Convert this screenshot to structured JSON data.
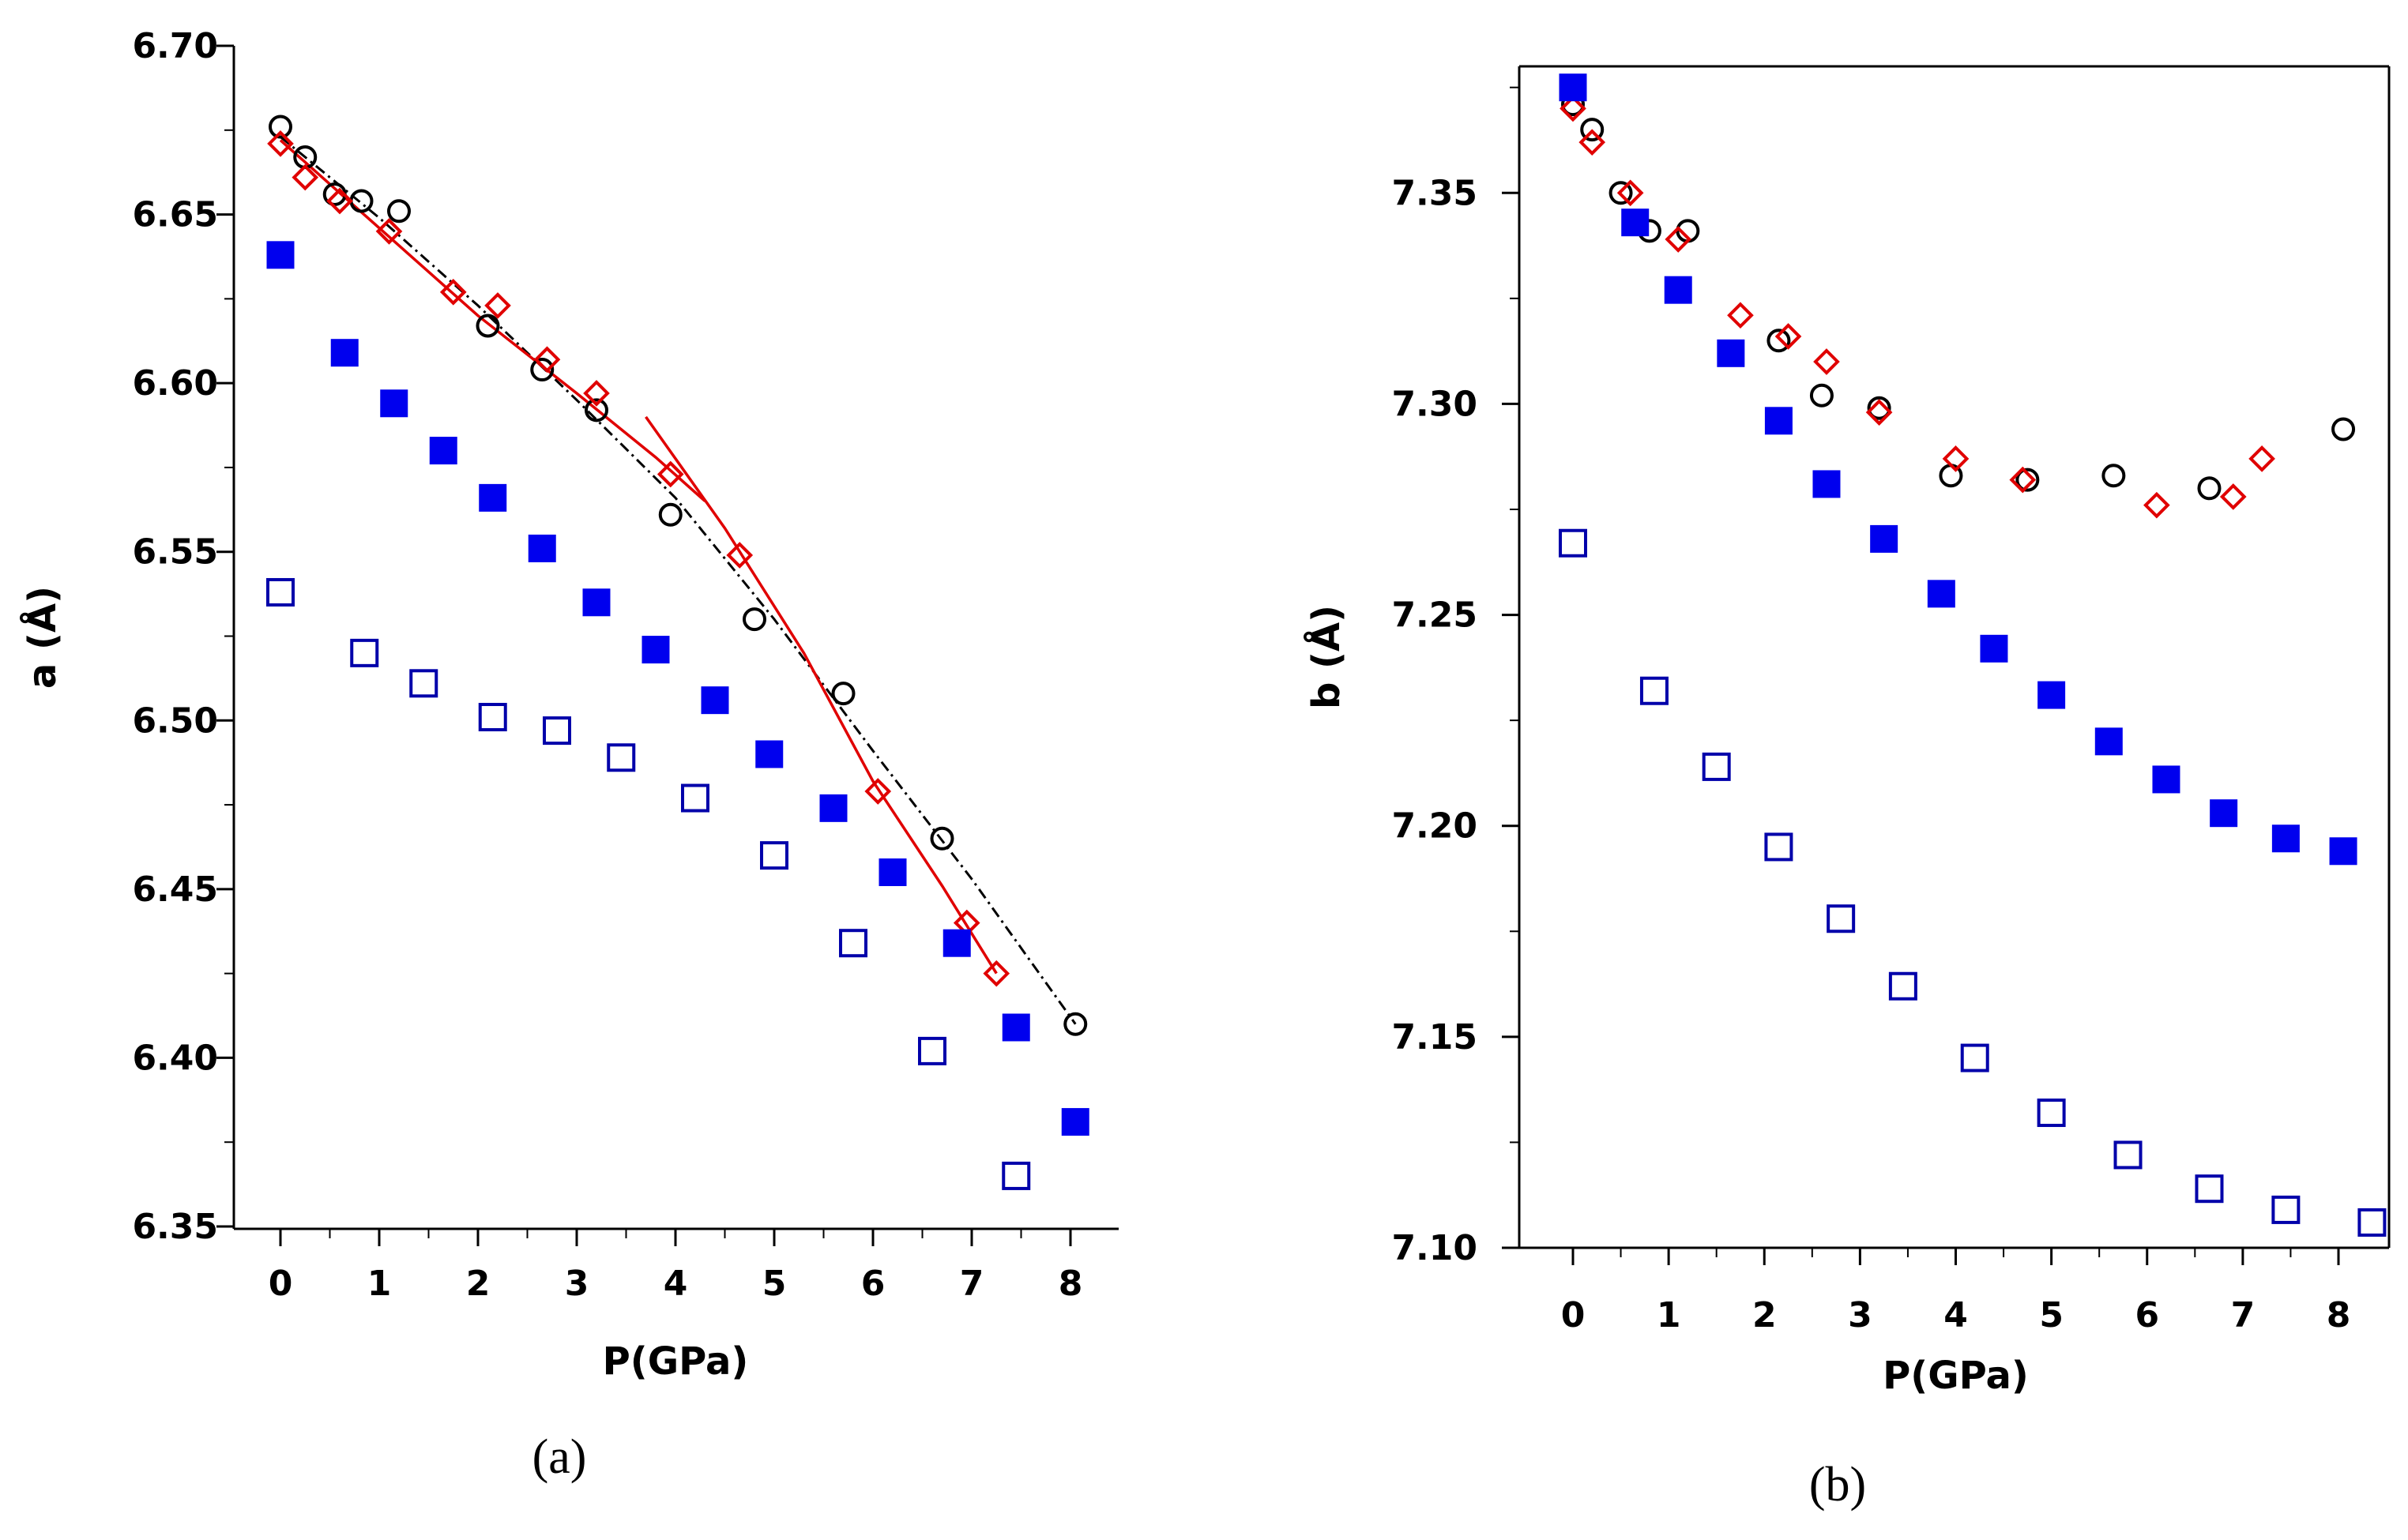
{
  "chart_data": [
    {
      "id": "a",
      "type": "scatter",
      "caption": "(a)",
      "xlabel": "P(GPa)",
      "ylabel": "a (Å)",
      "xlim": [
        -0.5,
        8.5
      ],
      "ylim": [
        6.35,
        6.7
      ],
      "xticks": [
        "0",
        "1",
        "2",
        "3",
        "4",
        "5",
        "6",
        "7",
        "8"
      ],
      "yticks": [
        "6.35",
        "6.40",
        "6.45",
        "6.50",
        "6.55",
        "6.60",
        "6.65",
        "6.70"
      ],
      "series": [
        {
          "name": "black-circles",
          "marker": "circle",
          "color": "#000000",
          "x": [
            0,
            0.25,
            0.55,
            0.82,
            1.2,
            2.1,
            2.65,
            3.2,
            3.95,
            4.8,
            5.7,
            6.7,
            8.05
          ],
          "y": [
            6.676,
            6.667,
            6.656,
            6.654,
            6.651,
            6.617,
            6.604,
            6.592,
            6.561,
            6.53,
            6.508,
            6.465,
            6.41
          ]
        },
        {
          "name": "red-diamonds",
          "marker": "diamond",
          "color": "#e00000",
          "x": [
            0,
            0.25,
            0.6,
            1.1,
            1.75,
            2.2,
            2.7,
            3.2,
            3.95,
            4.65,
            6.05,
            6.95,
            7.25
          ],
          "y": [
            6.671,
            6.661,
            6.654,
            6.645,
            6.627,
            6.623,
            6.607,
            6.597,
            6.573,
            6.549,
            6.479,
            6.44,
            6.425
          ]
        },
        {
          "name": "blue-filled-squares",
          "marker": "square-filled",
          "color": "#0000ee",
          "x": [
            0,
            0.65,
            1.15,
            1.65,
            2.15,
            2.65,
            3.2,
            3.8,
            4.4,
            4.95,
            5.6,
            6.2,
            6.85,
            7.45,
            8.05
          ],
          "y": [
            6.638,
            6.609,
            6.594,
            6.58,
            6.566,
            6.551,
            6.535,
            6.521,
            6.506,
            6.49,
            6.474,
            6.455,
            6.434,
            6.409,
            6.381
          ]
        },
        {
          "name": "blue-open-squares",
          "marker": "square-open",
          "color": "#0000aa",
          "x": [
            0,
            0.85,
            1.45,
            2.15,
            2.8,
            3.45,
            4.2,
            5.0,
            5.8,
            6.6,
            7.45
          ],
          "y": [
            6.538,
            6.52,
            6.511,
            6.501,
            6.497,
            6.489,
            6.477,
            6.46,
            6.434,
            6.402,
            6.365
          ]
        }
      ],
      "fits": [
        {
          "name": "black-dashdot-fit",
          "style": "dashdot",
          "color": "#000000",
          "x": [
            0,
            1,
            2,
            3,
            4,
            5,
            6,
            7,
            8.05
          ],
          "y": [
            6.673,
            6.649,
            6.623,
            6.595,
            6.566,
            6.53,
            6.491,
            6.453,
            6.41
          ]
        },
        {
          "name": "red-fit-low-pressure",
          "style": "solid",
          "color": "#e00000",
          "x": [
            0,
            1,
            2,
            3,
            3.8,
            4.3
          ],
          "y": [
            6.672,
            6.646,
            6.62,
            6.597,
            6.578,
            6.565
          ]
        },
        {
          "name": "red-fit-high-pressure",
          "style": "solid",
          "color": "#e00000",
          "x": [
            3.7,
            4.5,
            5.3,
            6.0,
            6.7,
            7.25
          ],
          "y": [
            6.59,
            6.557,
            6.52,
            6.482,
            6.451,
            6.425
          ]
        }
      ]
    },
    {
      "id": "b",
      "type": "scatter",
      "caption": "(b)",
      "xlabel": "P(GPa)",
      "ylabel": "b (Å)",
      "xlim": [
        -0.5,
        8.5
      ],
      "ylim": [
        7.1,
        7.38
      ],
      "xticks": [
        "0",
        "1",
        "2",
        "3",
        "4",
        "5",
        "6",
        "7",
        "8"
      ],
      "yticks": [
        "7.10",
        "7.15",
        "7.20",
        "7.25",
        "7.30",
        "7.35"
      ],
      "series": [
        {
          "name": "black-circles",
          "marker": "circle",
          "color": "#000000",
          "x": [
            0,
            0.2,
            0.5,
            0.8,
            1.2,
            2.15,
            2.6,
            3.2,
            3.95,
            4.75,
            5.65,
            6.65,
            8.05
          ],
          "y": [
            7.371,
            7.365,
            7.35,
            7.341,
            7.341,
            7.315,
            7.302,
            7.299,
            7.283,
            7.282,
            7.283,
            7.28,
            7.294
          ]
        },
        {
          "name": "red-diamonds",
          "marker": "diamond",
          "color": "#e00000",
          "x": [
            0,
            0.2,
            0.6,
            1.1,
            1.75,
            2.25,
            2.65,
            3.2,
            4.0,
            4.7,
            6.1,
            6.9,
            7.2
          ],
          "y": [
            7.37,
            7.362,
            7.35,
            7.339,
            7.321,
            7.316,
            7.31,
            7.298,
            7.287,
            7.282,
            7.276,
            7.278,
            7.287
          ]
        },
        {
          "name": "blue-filled-squares",
          "marker": "square-filled",
          "color": "#0000ee",
          "x": [
            0,
            0.65,
            1.1,
            1.65,
            2.15,
            2.65,
            3.25,
            3.85,
            4.4,
            5.0,
            5.6,
            6.2,
            6.8,
            7.45,
            8.05
          ],
          "y": [
            7.375,
            7.343,
            7.327,
            7.312,
            7.296,
            7.281,
            7.268,
            7.255,
            7.242,
            7.231,
            7.22,
            7.211,
            7.203,
            7.197,
            7.194
          ]
        },
        {
          "name": "blue-open-squares",
          "marker": "square-open",
          "color": "#0000aa",
          "x": [
            0,
            0.85,
            1.5,
            2.15,
            2.8,
            3.45,
            4.2,
            5.0,
            5.8,
            6.65,
            7.45,
            8.35
          ],
          "y": [
            7.267,
            7.232,
            7.214,
            7.195,
            7.178,
            7.162,
            7.145,
            7.132,
            7.122,
            7.114,
            7.109,
            7.106
          ]
        }
      ],
      "fits": []
    }
  ]
}
